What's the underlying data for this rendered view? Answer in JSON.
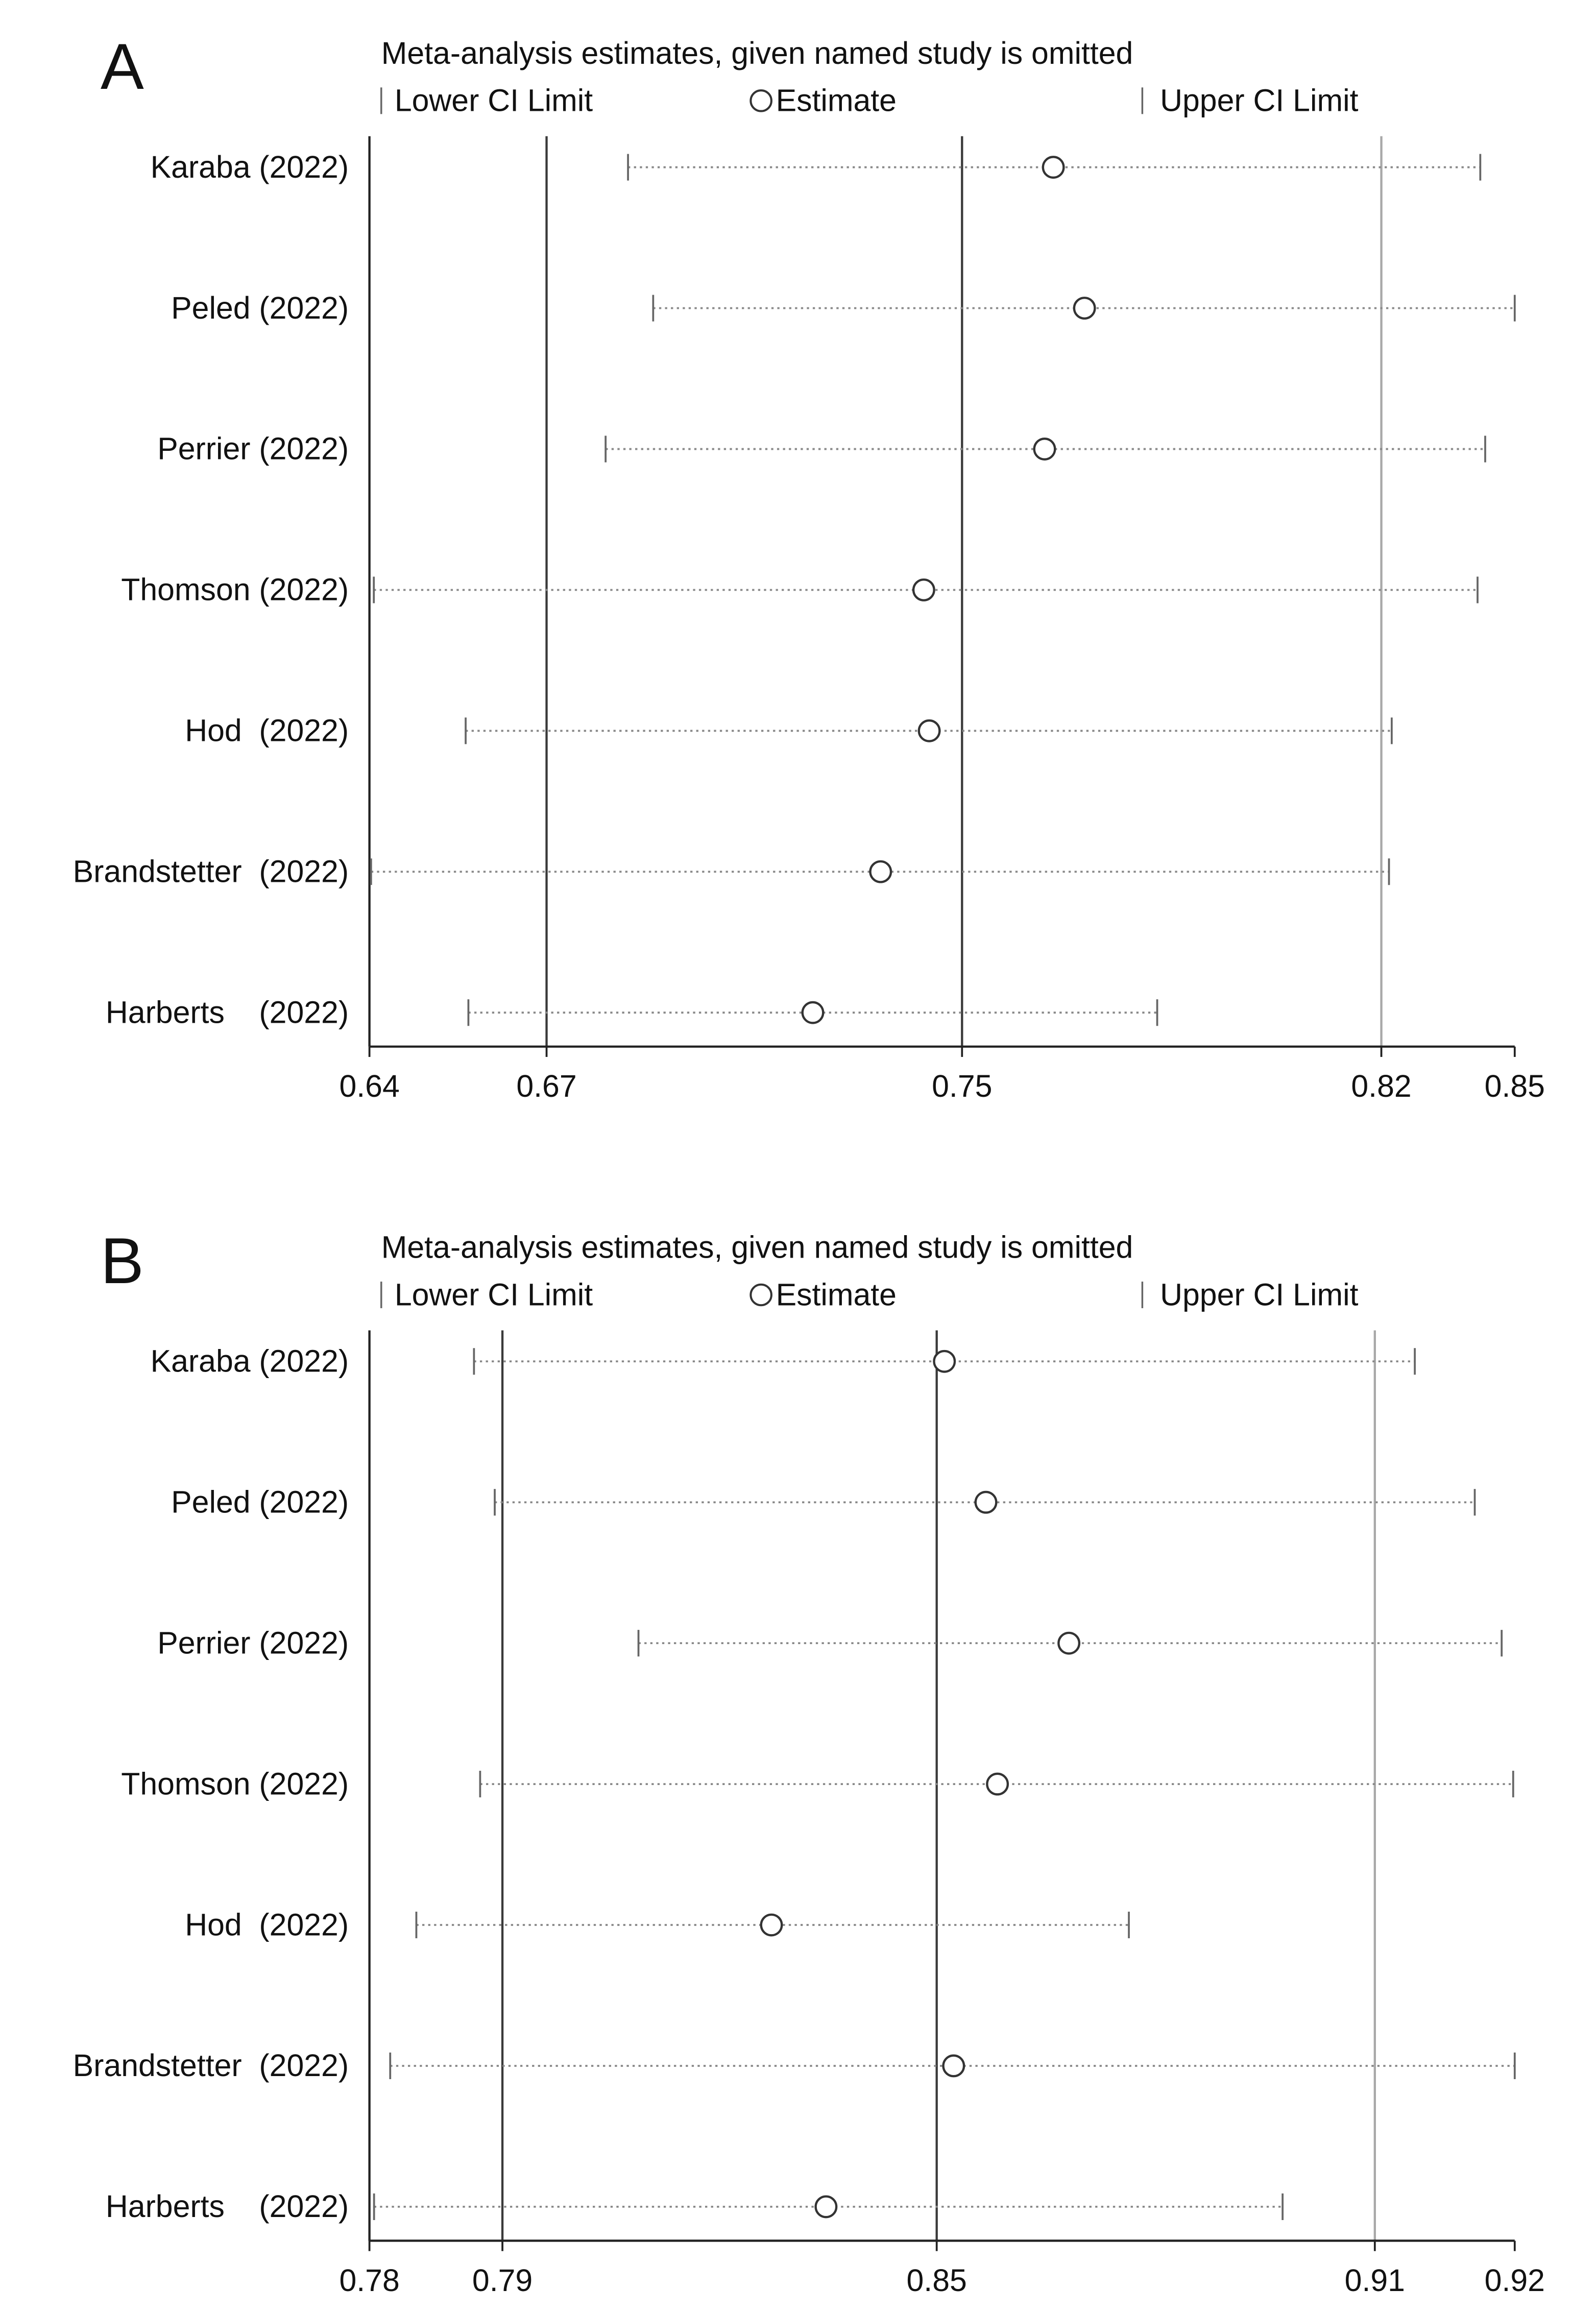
{
  "chart_data": [
    {
      "type": "sensitivity",
      "panel_label": "A",
      "title": "Meta-analysis estimates, given named study is omitted",
      "legend": {
        "lower": "Lower CI Limit",
        "estimate": "Estimate",
        "upper": "Upper CI Limit"
      },
      "categories": [
        "Karaba (2022)",
        "Peled (2022)",
        "Perrier (2022)",
        "Thomson (2022)",
        "Hod  (2022)",
        "Brandstetter  (2022)",
        "Harberts    (2022)"
      ],
      "lower": [
        0.6853,
        0.6899,
        0.6812,
        0.6388,
        0.6556,
        0.6383,
        0.6561
      ],
      "estimate": [
        0.7631,
        0.7688,
        0.7615,
        0.7394,
        0.7404,
        0.7315,
        0.7191
      ],
      "upper": [
        0.8412,
        0.8475,
        0.8421,
        0.8407,
        0.825,
        0.8245,
        0.7821
      ],
      "xlim": [
        0.638,
        0.8475
      ],
      "xticks": [
        {
          "value": 0.638,
          "label": "0.64"
        },
        {
          "value": 0.6704,
          "label": "0.67"
        },
        {
          "value": 0.7464,
          "label": "0.75"
        },
        {
          "value": 0.8231,
          "label": "0.82"
        },
        {
          "value": 0.8475,
          "label": "0.85"
        }
      ],
      "ref_lines": [
        0.6704,
        0.7464,
        0.8231
      ],
      "ref_line_colors": [
        "#3a3a3a",
        "#3a3a3a",
        "#a8a8a8"
      ]
    },
    {
      "type": "sensitivity",
      "panel_label": "B",
      "title": "Meta-analysis estimates, given named study is omitted",
      "legend": {
        "lower": "Lower CI Limit",
        "estimate": "Estimate",
        "upper": "Upper CI Limit"
      },
      "categories": [
        "Karaba (2022)",
        "Peled (2022)",
        "Perrier (2022)",
        "Thomson (2022)",
        "Hod  (2022)",
        "Brandstetter  (2022)",
        "Harberts    (2022)"
      ],
      "lower": [
        0.7891,
        0.7918,
        0.8105,
        0.7899,
        0.7816,
        0.7782,
        0.7761
      ],
      "estimate": [
        0.8503,
        0.8557,
        0.8665,
        0.8572,
        0.8278,
        0.8515,
        0.8349
      ],
      "upper": [
        0.9115,
        0.9193,
        0.9228,
        0.9243,
        0.8743,
        0.9245,
        0.8943
      ],
      "xlim": [
        0.7755,
        0.9245
      ],
      "xticks": [
        {
          "value": 0.7755,
          "label": "0.78"
        },
        {
          "value": 0.7928,
          "label": "0.79"
        },
        {
          "value": 0.8493,
          "label": "0.85"
        },
        {
          "value": 0.9063,
          "label": "0.91"
        },
        {
          "value": 0.9245,
          "label": "0.92"
        }
      ],
      "ref_lines": [
        0.7928,
        0.8493,
        0.9063
      ],
      "ref_line_colors": [
        "#3a3a3a",
        "#3a3a3a",
        "#a8a8a8"
      ]
    }
  ]
}
